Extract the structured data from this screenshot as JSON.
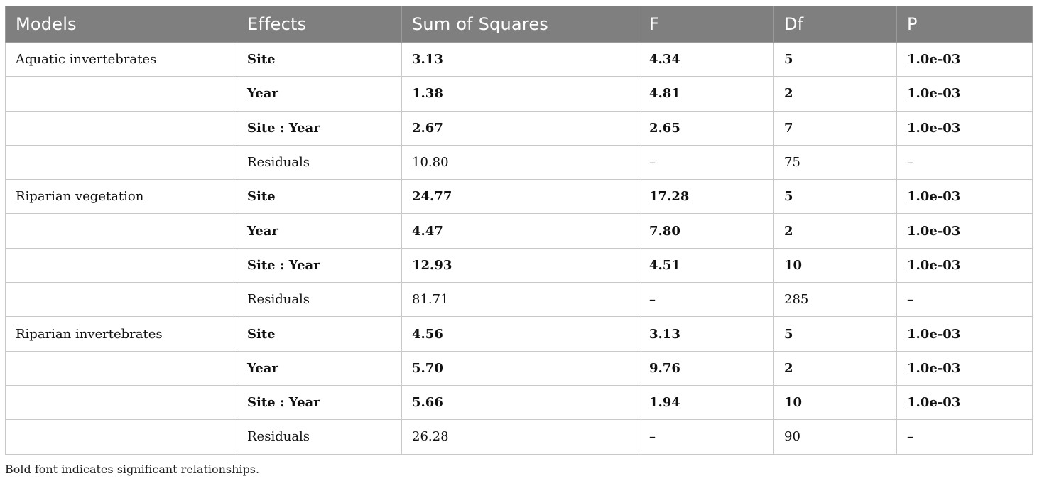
{
  "table": {
    "headers": [
      "Models",
      "Effects",
      "Sum of Squares",
      "F",
      "Df",
      "P"
    ],
    "rows": [
      {
        "model": "Aquatic invertebrates",
        "effect": "Site",
        "ss": "3.13",
        "f": "4.34",
        "df": "5",
        "p": "1.0e-03",
        "bold": true
      },
      {
        "model": "",
        "effect": "Year",
        "ss": "1.38",
        "f": "4.81",
        "df": "2",
        "p": "1.0e-03",
        "bold": true
      },
      {
        "model": "",
        "effect": "Site : Year",
        "ss": "2.67",
        "f": "2.65",
        "df": "7",
        "p": "1.0e-03",
        "bold": true
      },
      {
        "model": "",
        "effect": "Residuals",
        "ss": "10.80",
        "f": "–",
        "df": "75",
        "p": "–",
        "bold": false
      },
      {
        "model": "Riparian vegetation",
        "effect": "Site",
        "ss": "24.77",
        "f": "17.28",
        "df": "5",
        "p": "1.0e-03",
        "bold": true
      },
      {
        "model": "",
        "effect": "Year",
        "ss": "4.47",
        "f": "7.80",
        "df": "2",
        "p": "1.0e-03",
        "bold": true
      },
      {
        "model": "",
        "effect": "Site : Year",
        "ss": "12.93",
        "f": "4.51",
        "df": "10",
        "p": "1.0e-03",
        "bold": true
      },
      {
        "model": "",
        "effect": "Residuals",
        "ss": "81.71",
        "f": "–",
        "df": "285",
        "p": "–",
        "bold": false
      },
      {
        "model": "Riparian invertebrates",
        "effect": "Site",
        "ss": "4.56",
        "f": "3.13",
        "df": "5",
        "p": "1.0e-03",
        "bold": true
      },
      {
        "model": "",
        "effect": "Year",
        "ss": "5.70",
        "f": "9.76",
        "df": "2",
        "p": "1.0e-03",
        "bold": true
      },
      {
        "model": "",
        "effect": "Site : Year",
        "ss": "5.66",
        "f": "1.94",
        "df": "10",
        "p": "1.0e-03",
        "bold": true
      },
      {
        "model": "",
        "effect": "Residuals",
        "ss": "26.28",
        "f": "–",
        "df": "90",
        "p": "–",
        "bold": false
      }
    ]
  },
  "footnote": "Bold font indicates significant relationships.",
  "colors": {
    "header_background": "#7f7f7f",
    "header_text": "#ffffff",
    "grid": "#c8c8c8"
  }
}
